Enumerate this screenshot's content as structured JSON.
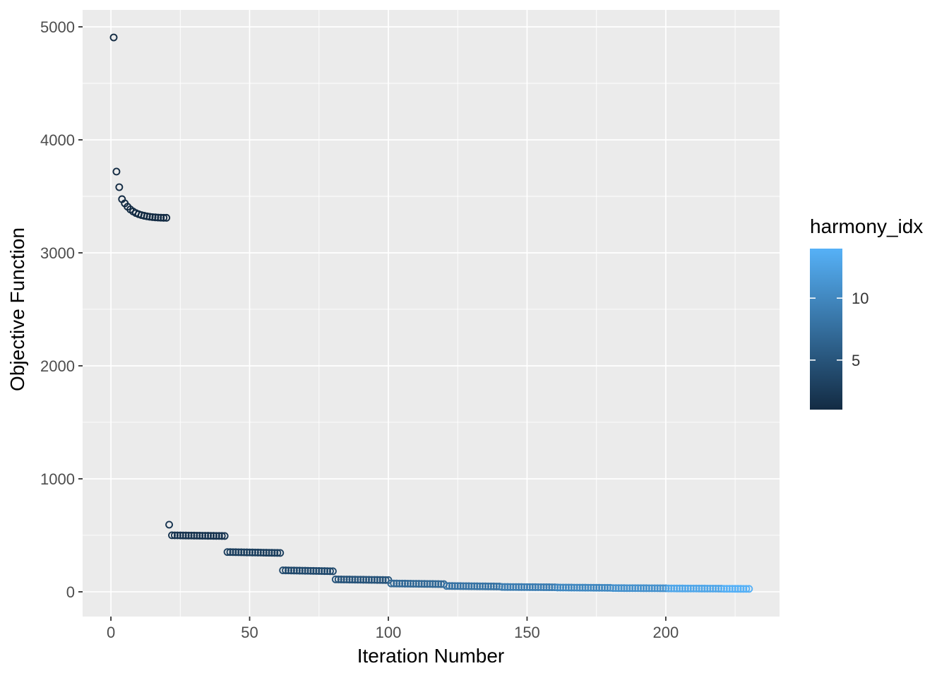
{
  "chart_data": {
    "type": "scatter",
    "title": "",
    "xlabel": "Iteration Number",
    "ylabel": "Objective Function",
    "color_label": "harmony_idx",
    "xlim": [
      -10.2,
      241
    ],
    "ylim": [
      -219,
      5150
    ],
    "x_ticks": [
      0,
      50,
      100,
      150,
      200
    ],
    "x_minor_ticks": [
      25,
      75,
      125,
      175,
      225
    ],
    "y_ticks": [
      0,
      1000,
      2000,
      3000,
      4000,
      5000
    ],
    "y_minor_ticks": [
      500,
      1500,
      2500,
      3500,
      4500
    ],
    "grid": "on",
    "legend_position": "right",
    "marker": "open-circle",
    "color_scale": {
      "low": "#132B43",
      "high": "#56B1F7",
      "domain": [
        1,
        14
      ],
      "legend_ticks": [
        5,
        10
      ]
    },
    "points_head": [
      [
        1,
        4906,
        1
      ],
      [
        2,
        3719,
        1
      ],
      [
        3,
        3581,
        1
      ],
      [
        4,
        3475,
        1
      ],
      [
        5,
        3438,
        1
      ],
      [
        6,
        3408,
        1
      ],
      [
        7,
        3384,
        1
      ],
      [
        8,
        3366,
        1
      ],
      [
        9,
        3352,
        1
      ],
      [
        10,
        3342,
        1
      ],
      [
        11,
        3334,
        1
      ],
      [
        12,
        3328,
        1
      ],
      [
        13,
        3323,
        1
      ],
      [
        14,
        3319,
        1
      ],
      [
        15,
        3316,
        1
      ],
      [
        16,
        3314,
        1
      ],
      [
        17,
        3312,
        1
      ],
      [
        18,
        3311,
        1
      ],
      [
        19,
        3310,
        1
      ],
      [
        20,
        3310,
        1
      ]
    ],
    "segments": [
      {
        "x_from": 21,
        "x_to": 21,
        "y_from": 594,
        "y_to": 594,
        "harmony_idx": 2
      },
      {
        "x_from": 22,
        "x_to": 41,
        "y_from": 500,
        "y_to": 494,
        "harmony_idx": 2
      },
      {
        "x_from": 42,
        "x_to": 61,
        "y_from": 352,
        "y_to": 344,
        "harmony_idx": 3
      },
      {
        "x_from": 62,
        "x_to": 80,
        "y_from": 190,
        "y_to": 182,
        "harmony_idx": 4
      },
      {
        "x_from": 81,
        "x_to": 100,
        "y_from": 110,
        "y_to": 104,
        "harmony_idx": 5
      },
      {
        "x_from": 101,
        "x_to": 120,
        "y_from": 74,
        "y_to": 68,
        "harmony_idx": 7
      },
      {
        "x_from": 121,
        "x_to": 140,
        "y_from": 52,
        "y_to": 47,
        "harmony_idx": 8
      },
      {
        "x_from": 141,
        "x_to": 160,
        "y_from": 43,
        "y_to": 40,
        "harmony_idx": 9
      },
      {
        "x_from": 161,
        "x_to": 180,
        "y_from": 38,
        "y_to": 35,
        "harmony_idx": 10
      },
      {
        "x_from": 181,
        "x_to": 200,
        "y_from": 33,
        "y_to": 31,
        "harmony_idx": 11
      },
      {
        "x_from": 201,
        "x_to": 220,
        "y_from": 30,
        "y_to": 28,
        "harmony_idx": 13
      },
      {
        "x_from": 221,
        "x_to": 230,
        "y_from": 27,
        "y_to": 26,
        "harmony_idx": 14
      }
    ]
  },
  "legend": {
    "title": "harmony_idx",
    "tick_labels": [
      "10",
      "5"
    ]
  },
  "theme": {
    "panel_background": "#EBEBEB",
    "grid_color": "#FFFFFF",
    "tick_label_color": "#4D4D4D",
    "axis_title_color": "#000000",
    "tick_mark_color": "#333333",
    "figure_background": "#FFFFFF"
  }
}
